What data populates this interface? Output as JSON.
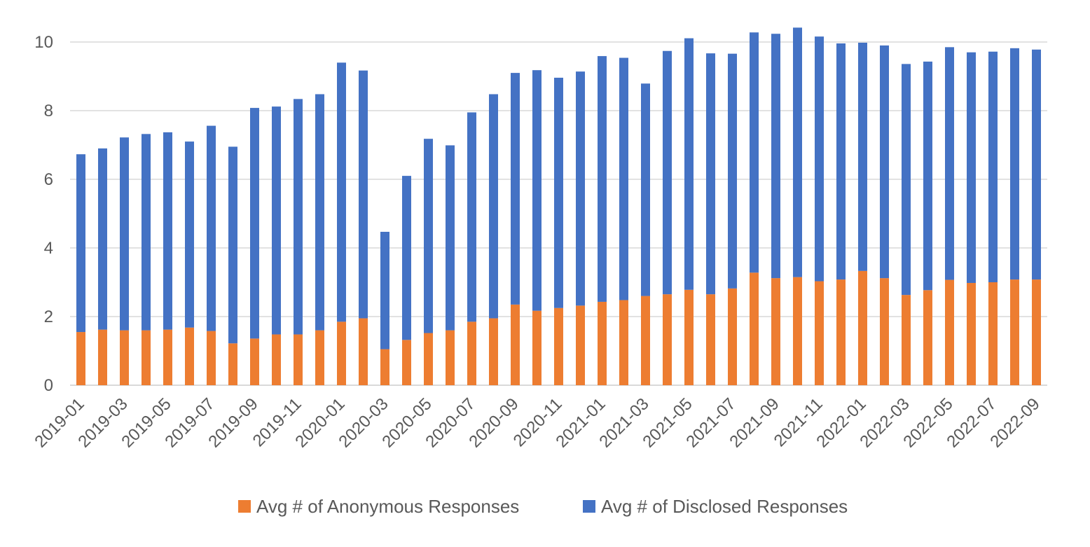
{
  "chart_data": {
    "type": "bar",
    "stacked": true,
    "categories": [
      "2019-01",
      "2019-02",
      "2019-03",
      "2019-04",
      "2019-05",
      "2019-06",
      "2019-07",
      "2019-08",
      "2019-09",
      "2019-10",
      "2019-11",
      "2019-12",
      "2020-01",
      "2020-02",
      "2020-03",
      "2020-04",
      "2020-05",
      "2020-06",
      "2020-07",
      "2020-08",
      "2020-09",
      "2020-10",
      "2020-11",
      "2020-12",
      "2021-01",
      "2021-02",
      "2021-03",
      "2021-04",
      "2021-05",
      "2021-06",
      "2021-07",
      "2021-08",
      "2021-09",
      "2021-10",
      "2021-11",
      "2021-12",
      "2022-01",
      "2022-02",
      "2022-03",
      "2022-04",
      "2022-05",
      "2022-06",
      "2022-07",
      "2022-08",
      "2022-09"
    ],
    "x_tick_labels": [
      "2019-01",
      "2019-03",
      "2019-05",
      "2019-07",
      "2019-09",
      "2019-11",
      "2020-01",
      "2020-03",
      "2020-05",
      "2020-07",
      "2020-09",
      "2020-11",
      "2021-01",
      "2021-03",
      "2021-05",
      "2021-07",
      "2021-09",
      "2021-11",
      "2022-01",
      "2022-03",
      "2022-05",
      "2022-07",
      "2022-09"
    ],
    "series": [
      {
        "name": "Avg # of Anonymous Responses",
        "color": "#ED7D31",
        "values": [
          1.55,
          1.62,
          1.6,
          1.6,
          1.62,
          1.68,
          1.58,
          1.22,
          1.36,
          1.48,
          1.48,
          1.6,
          1.85,
          1.95,
          1.05,
          1.32,
          1.52,
          1.6,
          1.85,
          1.95,
          2.35,
          2.17,
          2.25,
          2.32,
          2.43,
          2.48,
          2.6,
          2.65,
          2.78,
          2.65,
          2.82,
          3.28,
          3.12,
          3.15,
          3.03,
          3.08,
          3.33,
          3.12,
          2.63,
          2.77,
          3.07,
          2.98,
          3.0,
          3.08,
          3.08
        ]
      },
      {
        "name": "Avg # of Disclosed Responses",
        "color": "#4472C4",
        "values": [
          5.18,
          5.28,
          5.62,
          5.72,
          5.75,
          5.42,
          5.98,
          5.73,
          6.72,
          6.64,
          6.86,
          6.88,
          7.55,
          7.22,
          3.42,
          4.78,
          5.66,
          5.39,
          6.1,
          6.53,
          6.75,
          7.01,
          6.71,
          6.82,
          7.16,
          7.06,
          6.19,
          7.09,
          7.33,
          7.02,
          6.84,
          7.0,
          7.12,
          7.27,
          7.13,
          6.88,
          6.65,
          6.78,
          6.73,
          6.66,
          6.78,
          6.72,
          6.72,
          6.74,
          6.7
        ]
      }
    ],
    "ylim": [
      0,
      10.6
    ],
    "y_ticks": [
      "0",
      "2",
      "4",
      "6",
      "8",
      "10"
    ],
    "grid": true,
    "legend_position": "bottom"
  }
}
